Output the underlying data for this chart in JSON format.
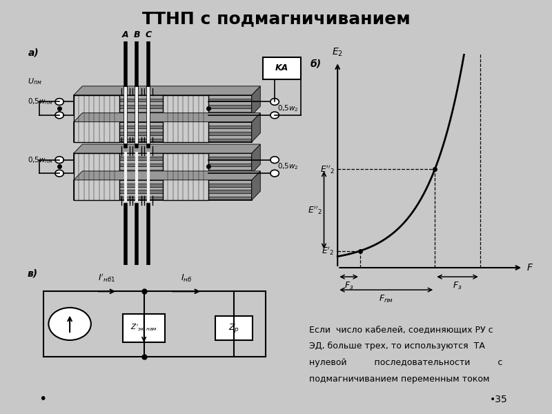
{
  "title": "ТТНП с подмагничиванием",
  "title_fontsize": 18,
  "title_fontweight": "bold",
  "background_color": "#c8c8c8",
  "panel_color": "#f2f2f2",
  "text_color": "#000000",
  "bottom_text_line1": "Если  число кабелей, соединяющих РУ с",
  "bottom_text_line2": "ЭД, больше трех, то используются  ТА",
  "bottom_text_line3": "нулевой          последовательности          с",
  "bottom_text_line4": "подмагничиванием переменным током",
  "page_number": "35",
  "graph_xp1": 2.5,
  "graph_xp2": 5.8,
  "graph_xp3": 7.8,
  "graph_ybase": 0.5,
  "graph_a": 0.25,
  "graph_b": 0.62,
  "graph_c": 0.18
}
